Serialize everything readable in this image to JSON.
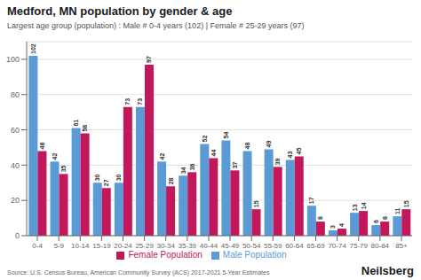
{
  "chart_data": {
    "type": "bar",
    "title": "Medford, MN population by gender & age",
    "subtitle": "Largest age group (population) : Male # 0-4 years (102) | Female # 25-29 years (97)",
    "annotations": [
      "Source: U.S. Census Bureau, American Community Survey (ACS) 2017-2021 5-Year Estimates",
      "Neilsberg"
    ],
    "categories": [
      "0-4",
      "5-9",
      "10-14",
      "15-19",
      "20-24",
      "25-29",
      "30-34",
      "35-39",
      "40-44",
      "45-49",
      "50-54",
      "55-59",
      "60-64",
      "65-69",
      "70-74",
      "75-79",
      "80-84",
      "85+"
    ],
    "series": [
      {
        "name": "Male Population",
        "color": "#5b9bd5",
        "values": [
          102,
          42,
          61,
          30,
          30,
          73,
          42,
          34,
          52,
          54,
          48,
          49,
          43,
          17,
          3,
          13,
          6,
          11
        ]
      },
      {
        "name": "Female Population",
        "color": "#c2185b",
        "values": [
          48,
          35,
          58,
          27,
          73,
          97,
          28,
          36,
          44,
          37,
          15,
          39,
          45,
          8,
          4,
          14,
          8,
          15
        ]
      }
    ],
    "ylim": [
      0,
      110
    ],
    "yticks": [
      0,
      20,
      40,
      60,
      80,
      100
    ],
    "grid": true,
    "legend": "bottom",
    "data_labels": true
  }
}
